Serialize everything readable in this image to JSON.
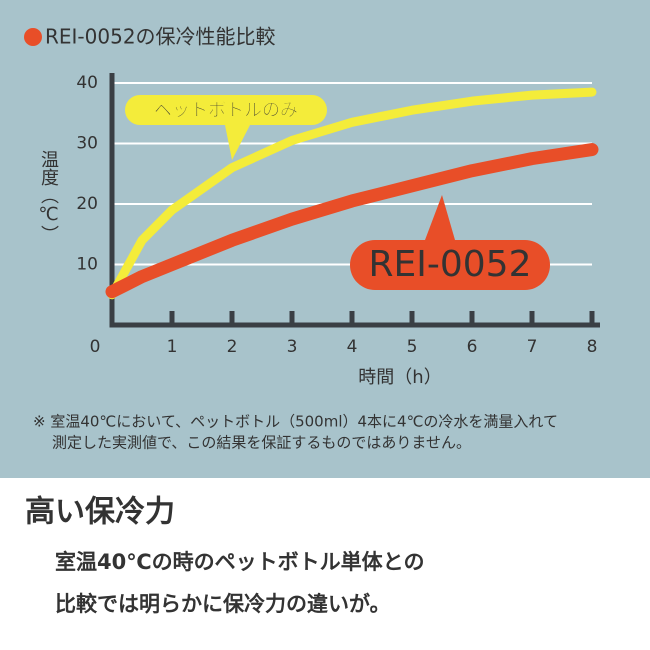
{
  "chart_data": {
    "type": "line",
    "title": "REI-0052の保冷性能比較",
    "x_label": "時間（h）",
    "y_label": "温度（℃）",
    "x": [
      0,
      0.5,
      1,
      2,
      3,
      4,
      5,
      6,
      7,
      8
    ],
    "series": [
      {
        "name": "ペットボトルのみ",
        "color": "#f4ec3a",
        "values": [
          5,
          14,
          19,
          26,
          30.5,
          33.5,
          35.5,
          37,
          38,
          38.5
        ]
      },
      {
        "name": "REI-0052",
        "color": "#e84e28",
        "values": [
          5.5,
          8,
          10,
          14,
          17.5,
          20.5,
          23,
          25.5,
          27.5,
          29
        ]
      }
    ],
    "xlim": [
      0,
      8
    ],
    "ylim": [
      0,
      40
    ],
    "xticks": [
      0,
      1,
      2,
      3,
      4,
      5,
      6,
      7,
      8
    ],
    "yticks": [
      10,
      20,
      30,
      40
    ],
    "grid": true
  },
  "note": [
    "※ 室温40℃において、ペットボトル（500ml）4本に4℃の冷水を満量入れて",
    "測定した実測値で、この結果を保証するものではありません。"
  ],
  "heading": "高い保冷力",
  "body": [
    "室温40℃の時のペットボトル単体との",
    "比較では明らかに保冷力の違いが。"
  ]
}
